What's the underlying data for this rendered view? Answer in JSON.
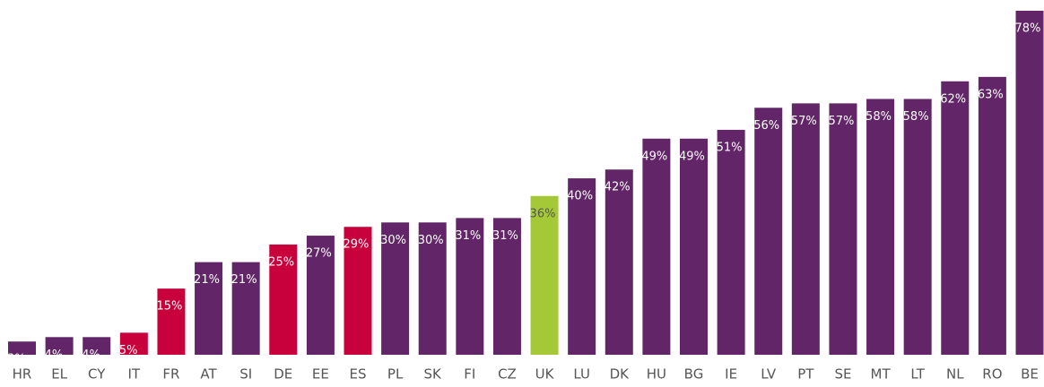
{
  "chart_data": {
    "type": "bar",
    "categories": [
      "HR",
      "EL",
      "CY",
      "IT",
      "FR",
      "AT",
      "SI",
      "DE",
      "EE",
      "ES",
      "PL",
      "SK",
      "FI",
      "CZ",
      "UK",
      "LU",
      "DK",
      "HU",
      "BG",
      "IE",
      "LV",
      "PT",
      "SE",
      "MT",
      "LT",
      "NL",
      "RO",
      "BE"
    ],
    "values": [
      3,
      4,
      4,
      5,
      15,
      21,
      21,
      25,
      27,
      29,
      30,
      30,
      31,
      31,
      36,
      40,
      42,
      49,
      49,
      51,
      56,
      57,
      57,
      58,
      58,
      62,
      63,
      78
    ],
    "value_labels": [
      "3%",
      "4%",
      "4%",
      "5%",
      "15%",
      "21%",
      "21%",
      "25%",
      "27%",
      "29%",
      "30%",
      "30%",
      "31%",
      "31%",
      "36%",
      "40%",
      "42%",
      "49%",
      "49%",
      "51%",
      "56%",
      "57%",
      "57%",
      "58%",
      "58%",
      "62%",
      "63%",
      "78%"
    ],
    "colors": [
      "#622567",
      "#622567",
      "#622567",
      "#c8003c",
      "#c8003c",
      "#622567",
      "#622567",
      "#c8003c",
      "#622567",
      "#c8003c",
      "#622567",
      "#622567",
      "#622567",
      "#622567",
      "#a5c936",
      "#622567",
      "#622567",
      "#622567",
      "#622567",
      "#622567",
      "#622567",
      "#622567",
      "#622567",
      "#622567",
      "#622567",
      "#622567",
      "#622567",
      "#622567"
    ]
  }
}
